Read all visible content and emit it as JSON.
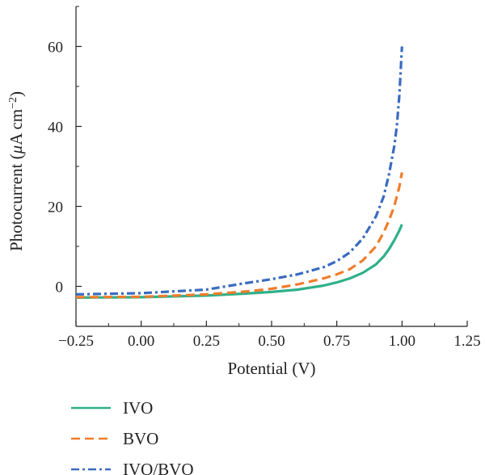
{
  "chart_data": {
    "type": "line",
    "xlabel": "Potential (V)",
    "ylabel_parts": {
      "prefix": "Photocurrent (",
      "mu": "μ",
      "unit": "A cm",
      "exp": "−2",
      "suffix": ")"
    },
    "xlim": [
      -0.25,
      1.25
    ],
    "ylim": [
      -10,
      70
    ],
    "x_ticks": [
      -0.25,
      0.0,
      0.25,
      0.5,
      0.75,
      1.0,
      1.25
    ],
    "x_tick_labels": [
      "−0.25",
      "0.00",
      "0.25",
      "0.50",
      "0.75",
      "1.00",
      "1.25"
    ],
    "y_ticks": [
      0,
      20,
      40,
      60
    ],
    "y_tick_labels": [
      "0",
      "20",
      "40",
      "60"
    ],
    "grid": false,
    "legend_position": "bottom-left, below plot",
    "series": [
      {
        "name": "IVO",
        "color": "#2fb08a",
        "dash": "solid",
        "x": [
          -0.25,
          0.0,
          0.25,
          0.4,
          0.5,
          0.6,
          0.7,
          0.75,
          0.8,
          0.85,
          0.9,
          0.93,
          0.95,
          0.97,
          0.99,
          1.0
        ],
        "y": [
          -2.8,
          -2.7,
          -2.3,
          -1.8,
          -1.4,
          -0.8,
          0.2,
          1.0,
          2.0,
          3.4,
          5.5,
          7.5,
          9.3,
          11.5,
          14.0,
          15.5
        ]
      },
      {
        "name": "BVO",
        "color": "#f07d2b",
        "dash": "long-dash",
        "x": [
          -0.25,
          0.0,
          0.25,
          0.4,
          0.5,
          0.6,
          0.7,
          0.75,
          0.8,
          0.85,
          0.9,
          0.93,
          0.95,
          0.97,
          0.99,
          1.0
        ],
        "y": [
          -2.7,
          -2.6,
          -2.0,
          -1.3,
          -0.6,
          0.5,
          2.0,
          3.0,
          4.3,
          6.5,
          10.0,
          13.5,
          16.5,
          20.0,
          25.0,
          28.5
        ]
      },
      {
        "name": "IVO/BVO",
        "color": "#3a6bbf",
        "dash": "dash-dot",
        "x": [
          -0.25,
          0.0,
          0.25,
          0.4,
          0.5,
          0.6,
          0.7,
          0.75,
          0.8,
          0.85,
          0.9,
          0.93,
          0.95,
          0.97,
          0.98,
          0.99,
          1.0
        ],
        "y": [
          -2.0,
          -1.7,
          -0.8,
          0.8,
          1.8,
          3.0,
          4.8,
          6.3,
          8.5,
          12.0,
          17.5,
          22.5,
          28.0,
          35.0,
          40.0,
          48.0,
          60.0
        ]
      }
    ]
  }
}
